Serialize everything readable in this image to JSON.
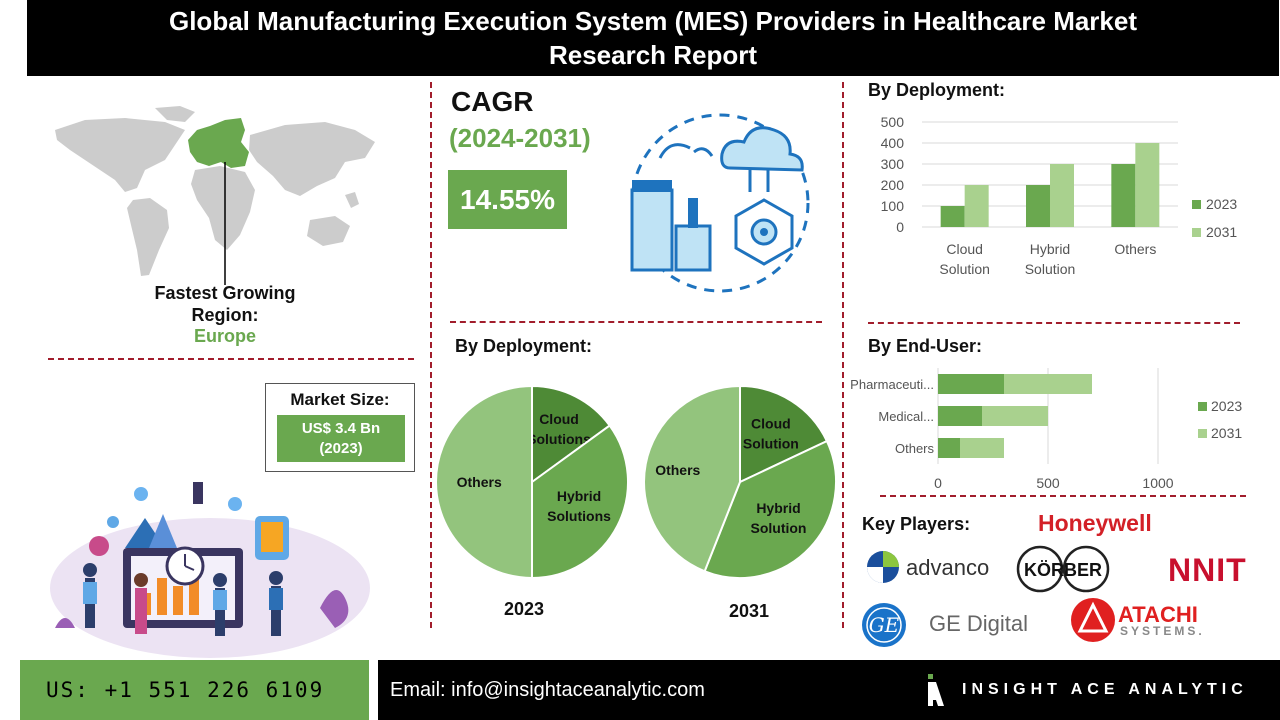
{
  "title": {
    "line1": "Global Manufacturing Execution System (MES) Providers in Healthcare Market",
    "line2": "Research Report"
  },
  "region": {
    "label_line1": "Fastest Growing",
    "label_line2": "Region:",
    "value": "Europe"
  },
  "market_size": {
    "label": "Market Size:",
    "value_line1": "US$ 3.4 Bn",
    "value_line2": "(2023)"
  },
  "cagr": {
    "label": "CAGR",
    "period": "(2024-2031)",
    "value": "14.55%"
  },
  "sections": {
    "deployment_bar_title": "By Deployment:",
    "deployment_pie_title": "By Deployment:",
    "end_user_title": "By End-User:",
    "key_players_title": "Key Players:"
  },
  "key_players": [
    "Honeywell",
    "advanco",
    "KÖRBER",
    "NNIT",
    "GE Digital",
    "ATACHI",
    "SYSTEMS."
  ],
  "footer": {
    "phone": "US: +1 551 226 6109",
    "email": "Email: info@insightaceanalytic.com",
    "brand": "INSIGHT ACE ANALYTIC"
  },
  "colors": {
    "series_2023": "#6aa84f",
    "series_2031": "#a9d18e",
    "accent_dash": "#a11d2c",
    "map_gray": "#cccccc"
  },
  "chart_data": [
    {
      "type": "bar",
      "title": "By Deployment:",
      "categories": [
        "Cloud Solution",
        "Hybrid Solution",
        "Others"
      ],
      "series": [
        {
          "name": "2023",
          "values": [
            100,
            200,
            300
          ]
        },
        {
          "name": "2031",
          "values": [
            200,
            300,
            400
          ]
        }
      ],
      "ylim": [
        0,
        500
      ],
      "yticks": [
        0,
        100,
        200,
        300,
        400,
        500
      ],
      "grid": true,
      "legend": "right"
    },
    {
      "type": "pie",
      "title": "2023",
      "labels": [
        "Cloud Solutions",
        "Hybrid Solutions",
        "Others"
      ],
      "values": [
        15,
        35,
        50
      ]
    },
    {
      "type": "pie",
      "title": "2031",
      "labels": [
        "Cloud Solution",
        "Hybrid Solution",
        "Others"
      ],
      "values": [
        18,
        38,
        44
      ]
    },
    {
      "type": "bar",
      "orientation": "horizontal",
      "stacked": true,
      "title": "By End-User:",
      "categories": [
        "Pharmaceuti...",
        "Medical...",
        "Others"
      ],
      "series": [
        {
          "name": "2023",
          "values": [
            300,
            200,
            100
          ]
        },
        {
          "name": "2031",
          "values": [
            400,
            300,
            200
          ]
        }
      ],
      "xlim": [
        0,
        1200
      ],
      "xticks": [
        0,
        500,
        1000
      ],
      "grid": true,
      "legend": "right"
    }
  ]
}
